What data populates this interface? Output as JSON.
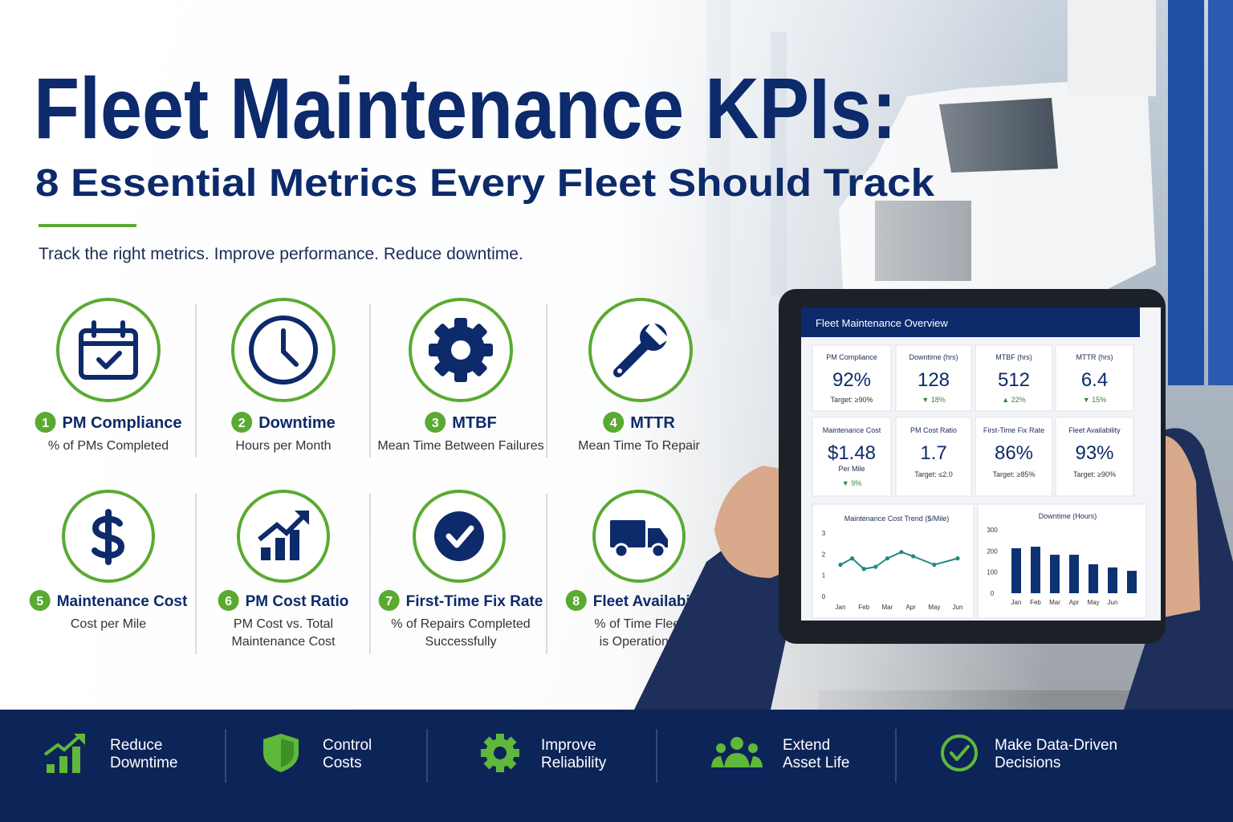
{
  "header": {
    "title": "Fleet Maintenance KPIs:",
    "subtitle": "8 Essential Metrics Every Fleet Should Track",
    "tagline": "Track the right metrics. Improve performance. Reduce downtime."
  },
  "kpis": [
    {
      "number": 1,
      "name": "PM Compliance",
      "description": [
        "% of PMs Completed"
      ]
    },
    {
      "number": 2,
      "name": "Downtime",
      "description": [
        "Hours per Month"
      ]
    },
    {
      "number": 3,
      "name": "MTBF",
      "description": [
        "Mean Time Between Failures"
      ]
    },
    {
      "number": 4,
      "name": "MTTR",
      "description": [
        "Mean Time To Repair"
      ]
    },
    {
      "number": 5,
      "name": "Maintenance Cost",
      "description": [
        "Cost per Mile"
      ]
    },
    {
      "number": 6,
      "name": "PM Cost Ratio",
      "description": [
        "PM Cost vs. Total",
        "Maintenance Cost"
      ]
    },
    {
      "number": 7,
      "name": "First-Time Fix Rate",
      "description": [
        "% of Repairs Completed",
        "Successfully"
      ]
    },
    {
      "number": 8,
      "name": "Fleet Availability",
      "description": [
        "% of Time Fleet",
        "is Operational"
      ]
    }
  ],
  "dashboard": {
    "title": "Fleet Maintenance Overview",
    "cards": [
      {
        "label": "PM Compliance",
        "value": "92%",
        "note": "Target: ≥90%",
        "note_color": "#333333"
      },
      {
        "label": "Downtime (hrs)",
        "value": "128",
        "note": "▼ 18%",
        "note_color": "#2e8b3a"
      },
      {
        "label": "MTBF (hrs)",
        "value": "512",
        "note": "▲ 22%",
        "note_color": "#2e8b3a"
      },
      {
        "label": "MTTR (hrs)",
        "value": "6.4",
        "note": "▼ 15%",
        "note_color": "#2e8b3a"
      },
      {
        "label": "Maintenance Cost",
        "value": "$1.48",
        "unit": "Per Mile",
        "note": "▼ 9%",
        "note_color": "#2e8b3a"
      },
      {
        "label": "PM Cost Ratio",
        "value": "1.7",
        "note": "Target: ≤2.0",
        "note_color": "#333333"
      },
      {
        "label": "First-Time Fix Rate",
        "value": "86%",
        "note": "Target: ≥85%",
        "note_color": "#333333"
      },
      {
        "label": "Fleet Availability",
        "value": "93%",
        "note": "Target: ≥90%",
        "note_color": "#333333"
      }
    ],
    "charts": [
      {
        "type": "line",
        "title": "Maintenance Cost Trend ($/Mile)",
        "color": "#1f8a84",
        "x": [
          0,
          0.5,
          1,
          1.5,
          2,
          2.6,
          3.1,
          4,
          5
        ],
        "values": [
          1.5,
          1.8,
          1.3,
          1.4,
          1.8,
          2.1,
          1.9,
          1.5,
          1.8
        ],
        "xlim": [
          0,
          5
        ],
        "xticks": [
          {
            "value": 0,
            "label": "Jan"
          },
          {
            "value": 1,
            "label": "Feb"
          },
          {
            "value": 2,
            "label": "Mar"
          },
          {
            "value": 3,
            "label": "Apr"
          },
          {
            "value": 4,
            "label": "May"
          },
          {
            "value": 5,
            "label": "Jun"
          }
        ],
        "ylim": [
          0,
          3
        ],
        "yticks": [
          0,
          1,
          2,
          3
        ]
      },
      {
        "type": "bar",
        "title": "Downtime (Hours)",
        "color": "#0d3272",
        "categories": [
          "Jan",
          "Feb",
          "Mar",
          "Apr",
          "May",
          "Jun",
          null
        ],
        "values": [
          213,
          220,
          182,
          182,
          137,
          122,
          106
        ],
        "ylim": [
          0,
          300
        ],
        "yticks": [
          0,
          100,
          200,
          300
        ]
      }
    ]
  },
  "benefits": [
    [
      "Reduce",
      "Downtime"
    ],
    [
      "Control",
      "Costs"
    ],
    [
      "Improve",
      "Reliability"
    ],
    [
      "Extend",
      "Asset Life"
    ],
    [
      "Make Data-Driven",
      "Decisions"
    ]
  ]
}
